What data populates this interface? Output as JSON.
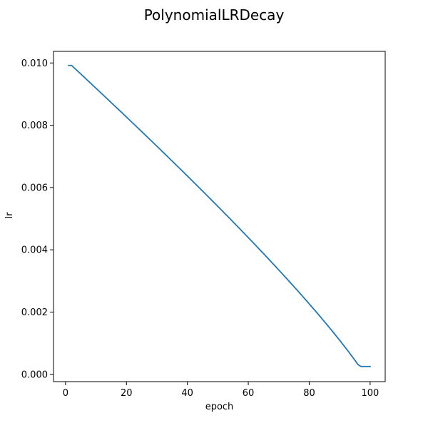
{
  "chart_data": {
    "type": "line",
    "title": "PolynomialLRDecay",
    "xlabel": "epoch",
    "ylabel": "lr",
    "xlim": [
      -3.95,
      104.95
    ],
    "ylim": [
      -0.000234,
      0.010373
    ],
    "xticks": [
      0,
      20,
      40,
      60,
      80,
      100
    ],
    "xtick_labels": [
      "0",
      "20",
      "40",
      "60",
      "80",
      "100"
    ],
    "yticks": [
      0.0,
      0.002,
      0.004,
      0.006,
      0.008,
      0.01
    ],
    "ytick_labels": [
      "0.000",
      "0.002",
      "0.004",
      "0.006",
      "0.008",
      "0.010"
    ],
    "grid": false,
    "series": [
      {
        "color": "#1f77b4",
        "x": [
          1,
          2,
          3,
          4,
          5,
          6,
          7,
          8,
          9,
          10,
          11,
          12,
          13,
          14,
          15,
          16,
          17,
          18,
          19,
          20,
          21,
          22,
          23,
          24,
          25,
          26,
          27,
          28,
          29,
          30,
          31,
          32,
          33,
          34,
          35,
          36,
          37,
          38,
          39,
          40,
          41,
          42,
          43,
          44,
          45,
          46,
          47,
          48,
          49,
          50,
          51,
          52,
          53,
          54,
          55,
          56,
          57,
          58,
          59,
          60,
          61,
          62,
          63,
          64,
          65,
          66,
          67,
          68,
          69,
          70,
          71,
          72,
          73,
          74,
          75,
          76,
          77,
          78,
          79,
          80,
          81,
          82,
          83,
          84,
          85,
          86,
          87,
          88,
          89,
          90,
          91,
          92,
          93,
          94,
          95,
          96,
          97,
          98,
          99,
          100
        ],
        "y": [
          0.00992,
          0.00992,
          0.009829,
          0.009737,
          0.009646,
          0.009555,
          0.009463,
          0.009372,
          0.00928,
          0.009188,
          0.009096,
          0.009004,
          0.008912,
          0.00882,
          0.008727,
          0.008635,
          0.008542,
          0.00845,
          0.008357,
          0.008264,
          0.008171,
          0.008077,
          0.007984,
          0.00789,
          0.007797,
          0.007703,
          0.007609,
          0.007515,
          0.00742,
          0.007326,
          0.007231,
          0.007136,
          0.007041,
          0.006946,
          0.006851,
          0.006755,
          0.006659,
          0.006564,
          0.006467,
          0.006371,
          0.006274,
          0.006178,
          0.006081,
          0.005983,
          0.005886,
          0.005788,
          0.00569,
          0.005592,
          0.005493,
          0.005395,
          0.005296,
          0.005196,
          0.005097,
          0.004997,
          0.004897,
          0.004797,
          0.004696,
          0.004595,
          0.004493,
          0.004392,
          0.00429,
          0.004187,
          0.004084,
          0.003981,
          0.003878,
          0.003774,
          0.003669,
          0.003564,
          0.003459,
          0.003353,
          0.003247,
          0.00314,
          0.003033,
          0.002925,
          0.002817,
          0.002708,
          0.002598,
          0.002488,
          0.002377,
          0.002265,
          0.002152,
          0.002039,
          0.001925,
          0.00181,
          0.001693,
          0.001576,
          0.001458,
          0.001338,
          0.001217,
          0.001095,
          0.000971,
          0.000845,
          0.000717,
          0.000587,
          0.000453,
          0.000316,
          0.000253,
          0.000253,
          0.000253,
          0.000253
        ]
      }
    ]
  }
}
